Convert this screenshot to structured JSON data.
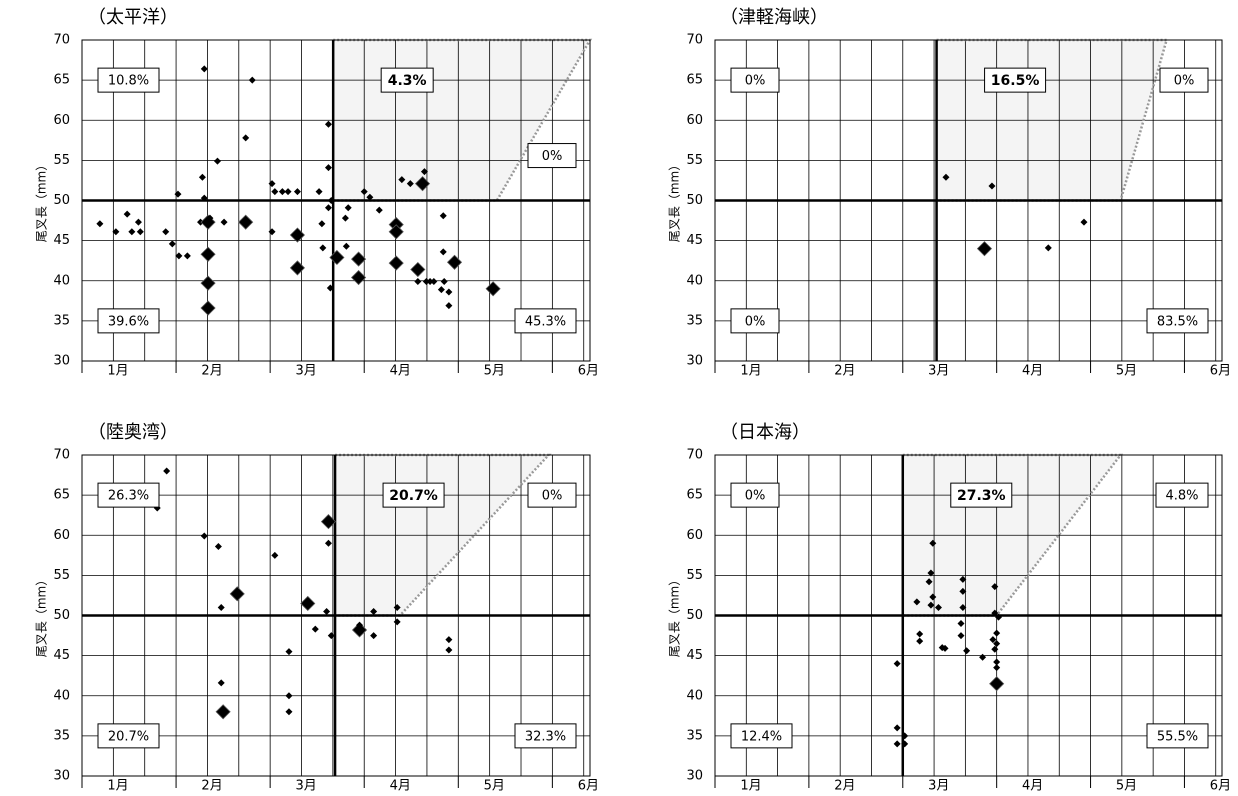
{
  "chart_data": [
    {
      "type": "scatter",
      "title": "（太平洋）",
      "y_label": "尾叉長（mm）",
      "xlim": [
        1,
        6.4
      ],
      "xticks": [
        {
          "value": 1,
          "label": "1月"
        },
        {
          "value": 2,
          "label": "2月"
        },
        {
          "value": 3,
          "label": "3月"
        },
        {
          "value": 4,
          "label": "4月"
        },
        {
          "value": 5,
          "label": "5月"
        },
        {
          "value": 6,
          "label": "6月"
        }
      ],
      "ylim": [
        30,
        70
      ],
      "yticks": [
        30,
        35,
        40,
        45,
        50,
        55,
        60,
        65,
        70
      ],
      "grid": true,
      "color": "#000000",
      "threshold_x": 3.67,
      "threshold_y": 50,
      "region_x": [
        3.67,
        6.4,
        5.41,
        3.67
      ],
      "region_y": [
        70,
        70,
        50,
        50
      ],
      "annotations": [
        {
          "text": "10.8%",
          "position": "upper-left"
        },
        {
          "text": "4.3%",
          "position": "upper-center",
          "bold": true
        },
        {
          "text": "0%",
          "position": "right"
        },
        {
          "text": "39.6%",
          "position": "lower-left"
        },
        {
          "text": "45.3%",
          "position": "lower-right"
        }
      ],
      "x": [
        1.19,
        1.36,
        1.48,
        1.53,
        1.6,
        1.62,
        1.89,
        1.96,
        2.02,
        2.03,
        2.12,
        2.26,
        2.28,
        2.3,
        2.3,
        2.34,
        2.34,
        2.34,
        2.34,
        2.36,
        2.44,
        2.51,
        2.74,
        2.74,
        2.81,
        3.02,
        3.02,
        3.05,
        3.13,
        3.19,
        3.29,
        3.29,
        3.29,
        3.62,
        3.62,
        3.52,
        3.62,
        3.55,
        3.56,
        3.64,
        3.65,
        3.71,
        3.81,
        3.8,
        3.83,
        3.94,
        3.94,
        4.0,
        4.06,
        4.16,
        4.34,
        4.34,
        4.34,
        4.4,
        4.49,
        4.62,
        4.64,
        4.57,
        4.57,
        4.66,
        4.7,
        4.74,
        4.84,
        4.84,
        4.85,
        4.9,
        4.9,
        4.82,
        4.96,
        5.37
      ],
      "y": [
        47.1,
        46.1,
        48.3,
        46.1,
        47.3,
        46.1,
        46.1,
        44.6,
        50.8,
        43.1,
        43.1,
        47.3,
        52.9,
        66.4,
        50.3,
        47.3,
        43.3,
        39.7,
        36.6,
        47.8,
        54.9,
        47.3,
        47.3,
        57.8,
        65.0,
        52.1,
        46.1,
        51.1,
        51.1,
        51.1,
        51.1,
        45.7,
        41.6,
        59.5,
        54.1,
        51.1,
        49.1,
        47.1,
        44.1,
        39.1,
        50.0,
        42.9,
        44.3,
        47.8,
        49.1,
        42.7,
        40.4,
        51.1,
        50.4,
        48.8,
        47.0,
        46.1,
        42.2,
        52.6,
        52.1,
        52.1,
        53.6,
        41.4,
        39.9,
        39.9,
        39.9,
        39.9,
        48.1,
        43.6,
        39.9,
        38.6,
        36.9,
        38.9,
        42.3,
        39.0
      ],
      "sizes": [
        1,
        1,
        1,
        1,
        1,
        1,
        1,
        1,
        1,
        1,
        1,
        1,
        1,
        1,
        1,
        2,
        2,
        2,
        2,
        1,
        1,
        1,
        2,
        1,
        1,
        1,
        1,
        1,
        1,
        1,
        1,
        2,
        2,
        1,
        1,
        1,
        1,
        1,
        1,
        1,
        1,
        2,
        1,
        1,
        1,
        2,
        2,
        1,
        1,
        1,
        2,
        2,
        2,
        1,
        1,
        2,
        1,
        2,
        1,
        1,
        1,
        1,
        1,
        1,
        1,
        1,
        1,
        1,
        2,
        2
      ]
    },
    {
      "type": "scatter",
      "title": "（津軽海峡）",
      "y_label": "尾叉長（mm）",
      "xlim": [
        1,
        6.4
      ],
      "xticks": [
        {
          "value": 1,
          "label": "1月"
        },
        {
          "value": 2,
          "label": "2月"
        },
        {
          "value": 3,
          "label": "3月"
        },
        {
          "value": 4,
          "label": "4月"
        },
        {
          "value": 5,
          "label": "5月"
        },
        {
          "value": 6,
          "label": "6月"
        }
      ],
      "ylim": [
        30,
        70
      ],
      "yticks": [
        30,
        35,
        40,
        45,
        50,
        55,
        60,
        65,
        70
      ],
      "grid": true,
      "color": "#000000",
      "threshold_x": 3.36,
      "threshold_y": 50,
      "region_x": [
        3.36,
        5.81,
        5.32,
        3.36
      ],
      "region_y": [
        70,
        70,
        50,
        50
      ],
      "annotations": [
        {
          "text": "0%",
          "position": "upper-left"
        },
        {
          "text": "16.5%",
          "position": "upper-center",
          "bold": true
        },
        {
          "text": "0%",
          "position": "upper-right"
        },
        {
          "text": "0%",
          "position": "lower-left"
        },
        {
          "text": "83.5%",
          "position": "lower-right"
        }
      ],
      "x": [
        3.46,
        3.95,
        3.87,
        4.55,
        4.93
      ],
      "y": [
        52.9,
        51.8,
        44.0,
        44.1,
        47.3
      ],
      "sizes": [
        1,
        1,
        2,
        1,
        1
      ]
    },
    {
      "type": "scatter",
      "title": "（陸奥湾）",
      "y_label": "尾叉長（mm）",
      "xlim": [
        1,
        6.4
      ],
      "xticks": [
        {
          "value": 1,
          "label": "1月"
        },
        {
          "value": 2,
          "label": "2月"
        },
        {
          "value": 3,
          "label": "3月"
        },
        {
          "value": 4,
          "label": "4月"
        },
        {
          "value": 5,
          "label": "5月"
        },
        {
          "value": 6,
          "label": "6月"
        }
      ],
      "ylim": [
        30,
        70
      ],
      "yticks": [
        30,
        35,
        40,
        45,
        50,
        55,
        60,
        65,
        70
      ],
      "grid": true,
      "color": "#000000",
      "threshold_x": 3.69,
      "threshold_y": 50,
      "region_x": [
        3.69,
        5.96,
        4.38,
        3.69
      ],
      "region_y": [
        70,
        70,
        50,
        50
      ],
      "annotations": [
        {
          "text": "26.3%",
          "position": "upper-left"
        },
        {
          "text": "20.7%",
          "position": "upper-center",
          "bold": true
        },
        {
          "text": "0%",
          "position": "upper-right"
        },
        {
          "text": "20.7%",
          "position": "lower-left"
        },
        {
          "text": "32.3%",
          "position": "lower-right"
        }
      ],
      "x": [
        1.9,
        1.8,
        2.3,
        2.45,
        2.48,
        2.48,
        2.5,
        2.65,
        3.05,
        3.2,
        3.2,
        3.2,
        3.4,
        3.48,
        3.62,
        3.62,
        3.6,
        3.65,
        3.95,
        3.95,
        4.1,
        4.1,
        4.35,
        4.35,
        4.9,
        4.9
      ],
      "y": [
        68.0,
        63.4,
        59.9,
        58.6,
        51.0,
        41.6,
        38.0,
        52.7,
        57.5,
        45.5,
        40.0,
        38.0,
        51.5,
        48.3,
        61.7,
        59.0,
        50.5,
        47.5,
        48.2,
        48.8,
        50.5,
        47.5,
        51.0,
        49.2,
        47.0,
        45.7
      ],
      "sizes": [
        1,
        1,
        1,
        1,
        1,
        1,
        2,
        2,
        1,
        1,
        1,
        1,
        2,
        1,
        2,
        1,
        1,
        1,
        2,
        1,
        1,
        1,
        1,
        1,
        1,
        1
      ]
    },
    {
      "type": "scatter",
      "title": "（日本海）",
      "y_label": "尾叉長（mm）",
      "xlim": [
        1,
        6.4
      ],
      "xticks": [
        {
          "value": 1,
          "label": "1月"
        },
        {
          "value": 2,
          "label": "2月"
        },
        {
          "value": 3,
          "label": "3月"
        },
        {
          "value": 4,
          "label": "4月"
        },
        {
          "value": 5,
          "label": "5月"
        },
        {
          "value": 6,
          "label": "6月"
        }
      ],
      "ylim": [
        30,
        70
      ],
      "yticks": [
        30,
        35,
        40,
        45,
        50,
        55,
        60,
        65,
        70
      ],
      "grid": true,
      "color": "#000000",
      "threshold_x": 3.0,
      "threshold_y": 50,
      "region_x": [
        3.0,
        5.32,
        4.0,
        3.0
      ],
      "region_y": [
        70,
        70,
        50,
        50
      ],
      "annotations": [
        {
          "text": "0%",
          "position": "upper-left"
        },
        {
          "text": "27.3%",
          "position": "upper-center",
          "bold": true
        },
        {
          "text": "4.8%",
          "position": "upper-right"
        },
        {
          "text": "12.4%",
          "position": "lower-left"
        },
        {
          "text": "55.5%",
          "position": "lower-right"
        }
      ],
      "x": [
        2.94,
        2.94,
        2.94,
        3.02,
        3.02,
        3.15,
        3.18,
        3.18,
        3.32,
        3.3,
        3.28,
        3.32,
        3.3,
        3.38,
        3.42,
        3.45,
        3.64,
        3.64,
        3.64,
        3.62,
        3.62,
        3.68,
        3.85,
        3.98,
        3.98,
        4.02,
        4.0,
        3.96,
        4.0,
        3.98,
        4.0,
        4.0,
        4.0
      ],
      "y": [
        44.0,
        36.0,
        34.0,
        35.0,
        34.0,
        51.7,
        47.7,
        46.8,
        59.0,
        55.3,
        54.2,
        52.3,
        51.3,
        51.0,
        46.0,
        45.9,
        54.5,
        53.0,
        51.0,
        49.0,
        47.5,
        45.6,
        44.8,
        53.6,
        50.3,
        49.8,
        47.8,
        47.0,
        46.5,
        45.8,
        44.2,
        43.5,
        41.5
      ],
      "sizes": [
        1,
        1,
        1,
        1,
        1,
        1,
        1,
        1,
        1,
        1,
        1,
        1,
        1,
        1,
        1,
        1,
        1,
        1,
        1,
        1,
        1,
        1,
        1,
        1,
        1,
        1,
        1,
        1,
        1,
        1,
        1,
        1,
        2
      ]
    }
  ]
}
